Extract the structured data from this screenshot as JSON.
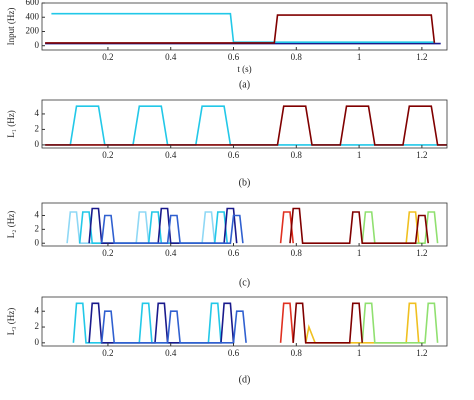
{
  "chart_data": [
    {
      "type": "line",
      "ylabel": "Input (Hz)",
      "xlabel": "t (s)",
      "caption": "(a)",
      "xlim": [
        -0.01,
        1.28
      ],
      "ylim": [
        -60,
        600
      ],
      "xticks": [
        0.2,
        0.4,
        0.6,
        0.8,
        1,
        1.2
      ],
      "yticks": [
        0,
        200,
        400,
        600
      ],
      "series": [
        {
          "color": "#1a1a8c",
          "x": [
            0,
            1.26
          ],
          "values": [
            30,
            30
          ]
        },
        {
          "color": "#22c8e8",
          "x": [
            0.02,
            0.59,
            0.6,
            1.24
          ],
          "values": [
            450,
            450,
            50,
            50
          ]
        },
        {
          "color": "#800000",
          "x": [
            0,
            0.73,
            0.74,
            1.23,
            1.24
          ],
          "values": [
            40,
            40,
            430,
            430,
            40
          ]
        }
      ]
    },
    {
      "type": "line",
      "ylabel": "L₁ (Hz)",
      "caption": "(b)",
      "xlim": [
        -0.01,
        1.28
      ],
      "ylim": [
        -0.4,
        5.8
      ],
      "xticks": [
        0.2,
        0.4,
        0.6,
        0.8,
        1,
        1.2
      ],
      "yticks": [
        0,
        2,
        4
      ],
      "series": [
        {
          "color": "#22c8e8",
          "x": [
            0,
            0.08,
            0.1,
            0.17,
            0.19,
            0.28,
            0.3,
            0.37,
            0.39,
            0.48,
            0.5,
            0.57,
            0.59,
            1.28
          ],
          "values": [
            0,
            0,
            5,
            5,
            0,
            0,
            5,
            5,
            0,
            0,
            5,
            5,
            0,
            0
          ]
        },
        {
          "color": "#800000",
          "x": [
            0,
            0.74,
            0.76,
            0.83,
            0.85,
            0.94,
            0.96,
            1.03,
            1.05,
            1.14,
            1.16,
            1.23,
            1.25,
            1.28
          ],
          "values": [
            0,
            0,
            5,
            5,
            0,
            0,
            5,
            5,
            0,
            0,
            5,
            5,
            0,
            0
          ]
        }
      ]
    },
    {
      "type": "line",
      "ylabel": "L₂ (Hz)",
      "caption": "(c)",
      "xlim": [
        -0.01,
        1.28
      ],
      "ylim": [
        -0.4,
        5.8
      ],
      "xticks": [
        0.2,
        0.4,
        0.6,
        0.8,
        1,
        1.2
      ],
      "yticks": [
        0,
        2,
        4
      ],
      "series": [
        {
          "color": "#8fd8f5",
          "x": [
            0.07,
            0.08,
            0.1,
            0.11,
            0.29,
            0.3,
            0.32,
            0.33,
            0.5,
            0.51,
            0.53,
            0.54
          ],
          "values": [
            0,
            4.5,
            4.5,
            0,
            0,
            4.5,
            4.5,
            0,
            0,
            4.5,
            4.5,
            0
          ]
        },
        {
          "color": "#22c8e8",
          "x": [
            0.11,
            0.12,
            0.14,
            0.15,
            0.33,
            0.34,
            0.36,
            0.37,
            0.54,
            0.55,
            0.57,
            0.58
          ],
          "values": [
            0,
            4.5,
            4.5,
            0,
            0,
            4.5,
            4.5,
            0,
            0,
            4.5,
            4.5,
            0
          ]
        },
        {
          "color": "#1a1a8c",
          "x": [
            0.14,
            0.15,
            0.17,
            0.18,
            0.36,
            0.37,
            0.39,
            0.4,
            0.57,
            0.58,
            0.6,
            0.61
          ],
          "values": [
            0,
            5,
            5,
            0,
            0,
            5,
            5,
            0,
            0,
            5,
            5,
            0
          ]
        },
        {
          "color": "#3060d0",
          "x": [
            0.18,
            0.19,
            0.21,
            0.22,
            0.39,
            0.4,
            0.42,
            0.43,
            0.59,
            0.6,
            0.62,
            0.63
          ],
          "values": [
            0,
            4,
            4,
            0,
            0,
            4,
            4,
            0,
            0,
            4,
            4,
            0
          ]
        },
        {
          "color": "#e03020",
          "x": [
            0.75,
            0.76,
            0.78,
            0.79
          ],
          "values": [
            0,
            4.5,
            4.5,
            0
          ]
        },
        {
          "color": "#f0c020",
          "x": [
            1.15,
            1.16,
            1.18,
            1.19
          ],
          "values": [
            0,
            4.5,
            4.5,
            0
          ]
        },
        {
          "color": "#90e070",
          "x": [
            1.01,
            1.02,
            1.04,
            1.05,
            1.21,
            1.22,
            1.24,
            1.25
          ],
          "values": [
            0,
            4.5,
            4.5,
            0,
            0,
            4.5,
            4.5,
            0
          ]
        },
        {
          "color": "#800000",
          "x": [
            0.78,
            0.79,
            0.81,
            0.82,
            0.97,
            0.98,
            1,
            1.01,
            1.18,
            1.19,
            1.21,
            1.22
          ],
          "values": [
            0,
            5,
            5,
            0,
            0,
            4.5,
            4.5,
            0,
            0,
            4,
            4,
            0
          ]
        }
      ]
    },
    {
      "type": "line",
      "ylabel": "L₃ (Hz)",
      "caption": "(d)",
      "xlim": [
        -0.01,
        1.28
      ],
      "ylim": [
        -0.4,
        5.8
      ],
      "xticks": [
        0.2,
        0.4,
        0.6,
        0.8,
        1,
        1.2
      ],
      "yticks": [
        0,
        2,
        4
      ],
      "series": [
        {
          "color": "#22c8e8",
          "x": [
            0.09,
            0.1,
            0.12,
            0.13,
            0.3,
            0.31,
            0.33,
            0.34,
            0.52,
            0.53,
            0.55,
            0.56
          ],
          "values": [
            0,
            5,
            5,
            0,
            0,
            5,
            5,
            0,
            0,
            5,
            5,
            0
          ]
        },
        {
          "color": "#1a1a8c",
          "x": [
            0.14,
            0.15,
            0.17,
            0.18,
            0.35,
            0.36,
            0.38,
            0.39,
            0.56,
            0.57,
            0.59,
            0.6
          ],
          "values": [
            0,
            5,
            5,
            0,
            0,
            5,
            5,
            0,
            0,
            5,
            5,
            0
          ]
        },
        {
          "color": "#3060d0",
          "x": [
            0.18,
            0.19,
            0.21,
            0.22,
            0.39,
            0.4,
            0.42,
            0.43,
            0.6,
            0.61,
            0.63,
            0.64
          ],
          "values": [
            0,
            4,
            4,
            0,
            0,
            4,
            4,
            0,
            0,
            4,
            4,
            0
          ]
        },
        {
          "color": "#e03020",
          "x": [
            0.75,
            0.76,
            0.78,
            0.79
          ],
          "values": [
            0,
            5,
            5,
            0
          ]
        },
        {
          "color": "#f0c020",
          "x": [
            0.83,
            0.84,
            0.86,
            1.15,
            1.16,
            1.18,
            1.19
          ],
          "values": [
            0,
            2,
            0,
            0,
            5,
            5,
            0
          ]
        },
        {
          "color": "#90e070",
          "x": [
            1.01,
            1.02,
            1.04,
            1.05,
            1.21,
            1.22,
            1.24,
            1.25
          ],
          "values": [
            0,
            5,
            5,
            0,
            0,
            5,
            5,
            0
          ]
        },
        {
          "color": "#800000",
          "x": [
            0.79,
            0.8,
            0.82,
            0.83,
            0.97,
            0.98,
            1,
            1.01
          ],
          "values": [
            0,
            5,
            5,
            0,
            0,
            5,
            5,
            0
          ]
        }
      ]
    }
  ]
}
